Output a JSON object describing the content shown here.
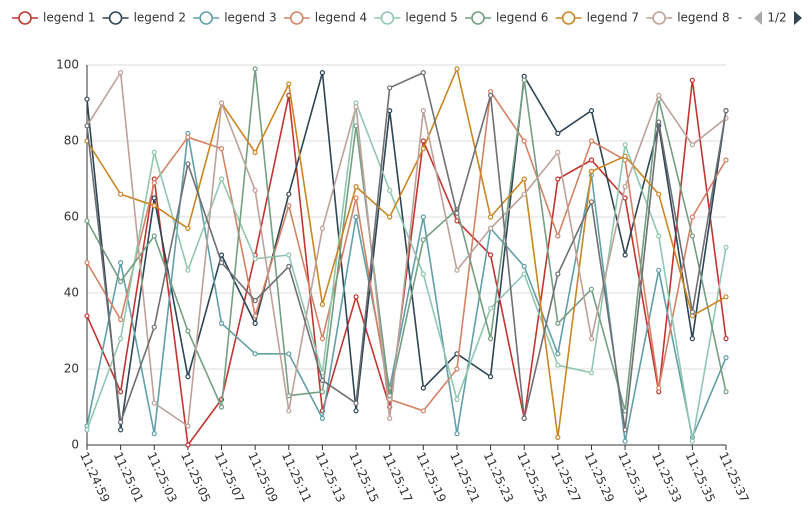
{
  "chart_data": {
    "type": "line",
    "categories": [
      "11:24:59",
      "11:25:01",
      "11:25:03",
      "11:25:05",
      "11:25:07",
      "11:25:09",
      "11:25:11",
      "11:25:13",
      "11:25:15",
      "11:25:17",
      "11:25:19",
      "11:25:21",
      "11:25:23",
      "11:25:25",
      "11:25:27",
      "11:25:29",
      "11:25:31",
      "11:25:33",
      "11:25:35",
      "11:25:37"
    ],
    "series": [
      {
        "name": "legend 1",
        "color": "#c23531",
        "values": [
          34,
          14,
          70,
          0,
          12,
          50,
          92,
          9,
          39,
          10,
          80,
          59,
          50,
          7,
          70,
          75,
          65,
          14,
          96,
          28
        ]
      },
      {
        "name": "legend 2",
        "color": "#2f4554",
        "values": [
          91,
          4,
          65,
          18,
          50,
          32,
          66,
          98,
          9,
          88,
          15,
          24,
          18,
          97,
          82,
          88,
          50,
          84,
          28,
          88
        ]
      },
      {
        "name": "legend 3",
        "color": "#61a0a8",
        "values": [
          5,
          48,
          3,
          82,
          32,
          24,
          24,
          7,
          60,
          15,
          60,
          3,
          57,
          47,
          24,
          71,
          1,
          46,
          2,
          23
        ]
      },
      {
        "name": "legend 4",
        "color": "#d48265",
        "values": [
          48,
          33,
          69,
          81,
          78,
          34,
          63,
          28,
          65,
          12,
          9,
          20,
          93,
          80,
          55,
          80,
          75,
          15,
          60,
          75
        ]
      },
      {
        "name": "legend 5",
        "color": "#91c7ae",
        "values": [
          4,
          28,
          77,
          46,
          70,
          49,
          50,
          19,
          90,
          67,
          45,
          12,
          36,
          45,
          21,
          19,
          79,
          55,
          1,
          52
        ]
      },
      {
        "name": "legend 6",
        "color": "#749f83",
        "values": [
          59,
          43,
          55,
          30,
          10,
          99,
          13,
          14,
          84,
          13,
          54,
          62,
          28,
          96,
          32,
          41,
          9,
          91,
          55,
          14
        ]
      },
      {
        "name": "legend 7",
        "color": "#ca8622",
        "values": [
          80,
          66,
          63,
          57,
          90,
          77,
          95,
          37,
          68,
          60,
          78,
          99,
          60,
          70,
          2,
          72,
          76,
          66,
          34,
          39
        ]
      },
      {
        "name": "legend 8",
        "color": "#bda29a",
        "values": [
          84,
          98,
          11,
          5,
          90,
          67,
          9,
          57,
          89,
          7,
          88,
          46,
          57,
          66,
          77,
          28,
          68,
          92,
          79,
          86
        ]
      },
      {
        "color": "#6e7074",
        "values": [
          84,
          6,
          31,
          74,
          48,
          38,
          47,
          17,
          11,
          94,
          98,
          61,
          92,
          7,
          45,
          64,
          4,
          85,
          35,
          88
        ]
      }
    ],
    "ylim": [
      0,
      100
    ],
    "yticks": [
      0,
      20,
      40,
      60,
      80,
      100
    ],
    "grid": true,
    "legend_separator": "-",
    "legend_page": "1/2"
  }
}
